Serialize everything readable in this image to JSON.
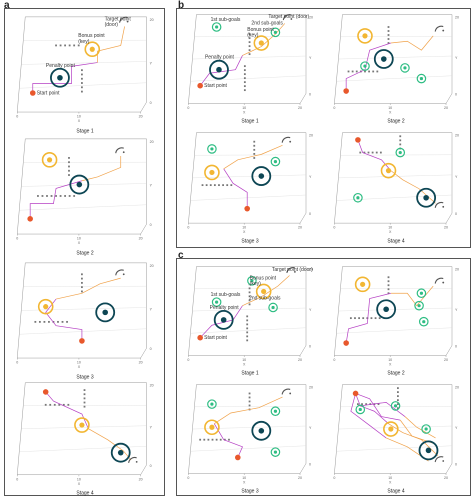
{
  "panels": [
    {
      "letter": "a"
    },
    {
      "letter": "b"
    },
    {
      "letter": "c"
    }
  ],
  "stages": [
    {
      "id": "a1",
      "caption": "Stage 1",
      "show_annotations": true,
      "annotation_set": "a"
    },
    {
      "id": "a2",
      "caption": "Stage 2"
    },
    {
      "id": "a3",
      "caption": "Stage 3"
    },
    {
      "id": "a4",
      "caption": "Stage 4"
    },
    {
      "id": "b1",
      "caption": "Stage 1",
      "show_annotations": true,
      "annotation_set": "b"
    },
    {
      "id": "b2",
      "caption": "Stage 2"
    },
    {
      "id": "b3",
      "caption": "Stage 3"
    },
    {
      "id": "b4",
      "caption": "Stage 4"
    },
    {
      "id": "c1",
      "caption": "Stage 1",
      "show_annotations": true,
      "annotation_set": "c"
    },
    {
      "id": "c2",
      "caption": "Stage 2"
    },
    {
      "id": "c3",
      "caption": "Stage 3"
    },
    {
      "id": "c4",
      "caption": "Stage 4"
    }
  ],
  "annotations": {
    "a": {
      "target": "Target point\n(door)",
      "bonus": "Bonus point\n(key)",
      "penalty": "Penalty point",
      "start": "Start point"
    },
    "b": {
      "target": "Target point (door)",
      "sub1": "1st sub-goals",
      "sub2": "2nd sub-goals",
      "bonus": "Bonus point\n(key)",
      "penalty": "Penalty point",
      "start": "Start point"
    },
    "c": {
      "target": "Target point (door)",
      "sub1": "1st sub-goals",
      "sub2": "2nd sub-goals",
      "bonus": "Bonus point\n(key)",
      "penalty": "Penalty point",
      "start": "Start point"
    }
  },
  "axis_labels": {
    "x": "X",
    "y": "Y",
    "z": "Z"
  },
  "axis_ticks": {
    "x": [
      "0",
      "10",
      "20"
    ],
    "y": [
      "0",
      "10",
      "20"
    ],
    "z": [
      "10",
      "20"
    ]
  },
  "colors": {
    "start": "#e8582c",
    "bonus": "#f2b632",
    "penalty": "#0d4654",
    "subgoal": "#2ebd83",
    "target": "#555555",
    "path_early": "#b53fc4",
    "path_late": "#f0a24a",
    "obstacle": "#777777"
  }
}
